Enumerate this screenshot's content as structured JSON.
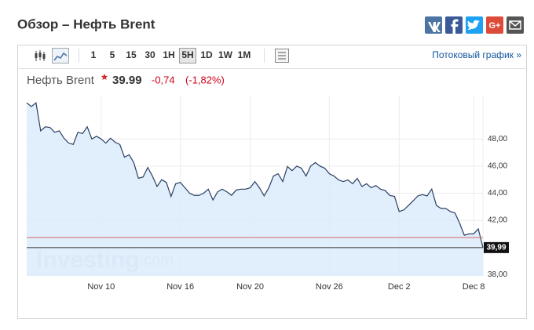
{
  "header": {
    "title": "Обзор – Нефть Brent",
    "share": [
      "G+"
    ]
  },
  "toolbar": {
    "intervals": [
      "1",
      "5",
      "15",
      "30",
      "1H",
      "5H",
      "1D",
      "1W",
      "1M"
    ],
    "selected": "5H",
    "streaming_link": "Потоковый график »"
  },
  "chart_data": {
    "type": "area",
    "instrument": "Нефть Brent",
    "price": 39.99,
    "change": {
      "value": -0.74,
      "label": "-0,74"
    },
    "change_percent": {
      "value": -1.82,
      "label": "(-1,82%)"
    },
    "watermark": [
      "Investing",
      ".com"
    ],
    "color": "#2b3f63",
    "fill": "#dcebfb",
    "categories": [
      null,
      null,
      null,
      null,
      null,
      null,
      null,
      null,
      null,
      null,
      null,
      null,
      null,
      null,
      null,
      null,
      "Nov 10",
      null,
      null,
      null,
      null,
      null,
      null,
      null,
      null,
      null,
      null,
      null,
      null,
      null,
      null,
      null,
      null,
      "Nov 16",
      null,
      null,
      null,
      null,
      null,
      null,
      null,
      null,
      null,
      null,
      null,
      null,
      null,
      null,
      "Nov 20",
      null,
      null,
      null,
      null,
      null,
      null,
      null,
      null,
      null,
      null,
      null,
      null,
      null,
      null,
      null,
      null,
      "Nov 26",
      null,
      null,
      null,
      null,
      null,
      null,
      null,
      null,
      null,
      null,
      null,
      null,
      null,
      null,
      "Dec 2",
      null,
      null,
      null,
      null,
      null,
      null,
      null,
      null,
      null,
      null,
      null,
      null,
      null,
      null,
      null,
      "Dec 8",
      null,
      null
    ],
    "values": [
      50.67,
      50.4,
      50.67,
      48.6,
      48.9,
      48.85,
      48.5,
      48.6,
      48.06,
      47.7,
      47.6,
      48.5,
      48.4,
      48.9,
      48.0,
      48.2,
      48.0,
      47.7,
      48.06,
      47.76,
      47.6,
      46.66,
      46.84,
      46.26,
      45.1,
      45.2,
      45.9,
      45.27,
      44.5,
      45.0,
      44.8,
      43.76,
      44.7,
      44.8,
      44.4,
      44.0,
      43.84,
      43.84,
      44.0,
      44.3,
      43.5,
      44.1,
      44.3,
      44.1,
      43.84,
      44.24,
      44.3,
      44.3,
      44.4,
      44.86,
      44.4,
      43.8,
      44.4,
      45.27,
      45.44,
      44.86,
      45.97,
      45.67,
      46.0,
      45.85,
      45.27,
      46.0,
      46.26,
      46.0,
      45.85,
      45.44,
      45.27,
      44.98,
      44.86,
      44.98,
      44.7,
      45.1,
      44.5,
      44.7,
      44.4,
      44.57,
      44.3,
      44.2,
      43.84,
      43.77,
      42.65,
      42.77,
      43.1,
      43.44,
      43.8,
      43.9,
      43.8,
      44.3,
      43.1,
      42.88,
      42.88,
      42.65,
      42.54,
      41.78,
      40.9,
      41.0,
      41.0,
      41.37,
      39.99
    ],
    "reference_line": 40.73,
    "last_price": {
      "value": 39.99,
      "label": "39,99"
    },
    "ylim": [
      37.9,
      51.2
    ],
    "yticks": [
      {
        "value": 38,
        "label": "38,00"
      },
      {
        "value": 42,
        "label": "42,00"
      },
      {
        "value": 44,
        "label": "44,00"
      },
      {
        "value": 46,
        "label": "46,00"
      },
      {
        "value": 48,
        "label": "48,00"
      }
    ],
    "grid": true
  }
}
